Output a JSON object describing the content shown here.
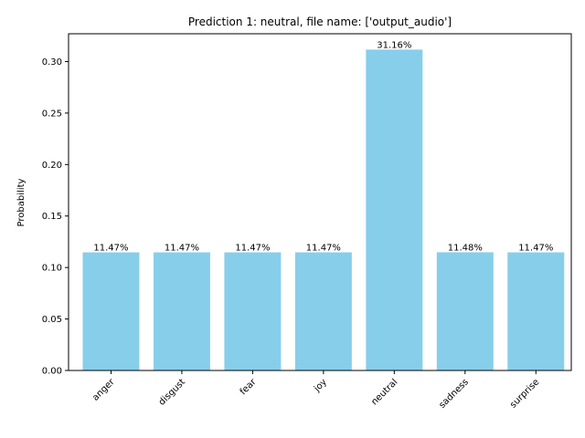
{
  "chart_data": {
    "type": "bar",
    "title": "Prediction 1: neutral, file name: ['output_audio']",
    "xlabel": "",
    "ylabel": "Probability",
    "categories": [
      "anger",
      "disgust",
      "fear",
      "joy",
      "neutral",
      "sadness",
      "surprise"
    ],
    "values": [
      0.1147,
      0.1147,
      0.1147,
      0.1147,
      0.3116,
      0.1148,
      0.1147
    ],
    "data_labels": [
      "11.47%",
      "11.47%",
      "11.47%",
      "11.47%",
      "31.16%",
      "11.48%",
      "11.47%"
    ],
    "ylim": [
      0,
      0.327
    ],
    "yticks": [
      0.0,
      0.05,
      0.1,
      0.15,
      0.2,
      0.25,
      0.3
    ],
    "ytick_labels": [
      "0.00",
      "0.05",
      "0.10",
      "0.15",
      "0.20",
      "0.25",
      "0.30"
    ],
    "bar_color": "#87ceeb",
    "grid": false,
    "legend": false
  }
}
